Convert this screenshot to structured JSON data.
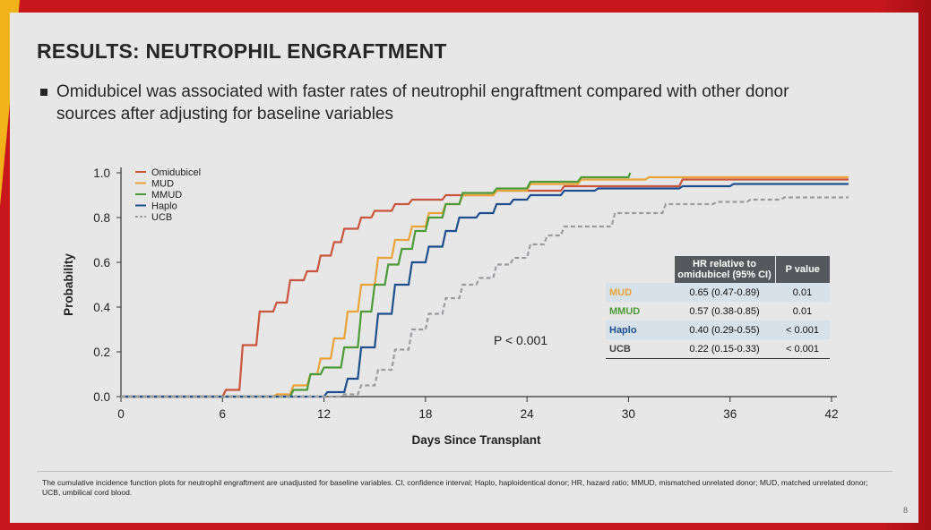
{
  "slide": {
    "title": "RESULTS: NEUTROPHIL ENGRAFTMENT",
    "bullet": "Omidubicel was associated with faster rates of neutrophil engraftment compared with other donor sources after adjusting for baseline variables",
    "footnote": "The cumulative incidence function plots for neutrophil engraftment are unadjusted for baseline variables. CI, confidence interval; Haplo, haploidentical donor; HR, hazard ratio; MMUD, mismatched unrelated donor; MUD, matched unrelated donor; UCB, umbilical cord blood.",
    "page_number": "8"
  },
  "table": {
    "headers": [
      "",
      "HR relative to omidubicel (95% CI)",
      "P value"
    ],
    "rows": [
      {
        "group": "MUD",
        "hr": "0.65 (0.47-0.89)",
        "p": "0.01",
        "color": "#e8a33a"
      },
      {
        "group": "MMUD",
        "hr": "0.57 (0.38-0.85)",
        "p": "0.01",
        "color": "#4e9a3a"
      },
      {
        "group": "Haplo",
        "hr": "0.40 (0.29-0.55)",
        "p": "< 0.001",
        "color": "#1f4e8c"
      },
      {
        "group": "UCB",
        "hr": "0.22 (0.15-0.33)",
        "p": "< 0.001",
        "color": "#444444"
      }
    ]
  },
  "chart_data": {
    "type": "line",
    "step": true,
    "xlabel": "Days Since Transplant",
    "ylabel": "Probability",
    "xlim": [
      0,
      43
    ],
    "ylim": [
      0,
      1.0
    ],
    "xticks": [
      0,
      6,
      12,
      18,
      24,
      30,
      36,
      42
    ],
    "yticks": [
      "0.0",
      "0.2",
      "0.4",
      "0.6",
      "0.8",
      "1.0"
    ],
    "legend_position": "top-left",
    "annotation": "P < 0.001",
    "series": [
      {
        "name": "Omidubicel",
        "color": "#c8553d",
        "dash": false,
        "points": [
          [
            0,
            0
          ],
          [
            6,
            0
          ],
          [
            6.2,
            0.03
          ],
          [
            7,
            0.03
          ],
          [
            7.2,
            0.23
          ],
          [
            8,
            0.23
          ],
          [
            8.2,
            0.38
          ],
          [
            9,
            0.38
          ],
          [
            9.2,
            0.42
          ],
          [
            9.8,
            0.42
          ],
          [
            10,
            0.52
          ],
          [
            10.8,
            0.52
          ],
          [
            11,
            0.56
          ],
          [
            11.6,
            0.56
          ],
          [
            11.8,
            0.63
          ],
          [
            12.4,
            0.63
          ],
          [
            12.6,
            0.69
          ],
          [
            13,
            0.69
          ],
          [
            13.2,
            0.75
          ],
          [
            14,
            0.75
          ],
          [
            14.2,
            0.8
          ],
          [
            14.8,
            0.8
          ],
          [
            15,
            0.83
          ],
          [
            16,
            0.83
          ],
          [
            16.2,
            0.86
          ],
          [
            17,
            0.86
          ],
          [
            17.2,
            0.88
          ],
          [
            19,
            0.88
          ],
          [
            19.2,
            0.9
          ],
          [
            22,
            0.9
          ],
          [
            22.2,
            0.92
          ],
          [
            26,
            0.92
          ],
          [
            26.2,
            0.94
          ],
          [
            33,
            0.94
          ],
          [
            33.2,
            0.97
          ],
          [
            43,
            0.97
          ]
        ]
      },
      {
        "name": "MUD",
        "color": "#e8a33a",
        "dash": false,
        "points": [
          [
            0,
            0
          ],
          [
            9,
            0
          ],
          [
            9.2,
            0.01
          ],
          [
            10,
            0.01
          ],
          [
            10.2,
            0.05
          ],
          [
            11,
            0.05
          ],
          [
            11.2,
            0.1
          ],
          [
            11.6,
            0.1
          ],
          [
            11.8,
            0.17
          ],
          [
            12.4,
            0.17
          ],
          [
            12.6,
            0.26
          ],
          [
            13.2,
            0.26
          ],
          [
            13.4,
            0.38
          ],
          [
            14,
            0.38
          ],
          [
            14.2,
            0.5
          ],
          [
            15,
            0.5
          ],
          [
            15.2,
            0.62
          ],
          [
            16,
            0.62
          ],
          [
            16.2,
            0.7
          ],
          [
            17,
            0.7
          ],
          [
            17.2,
            0.76
          ],
          [
            18,
            0.76
          ],
          [
            18.2,
            0.82
          ],
          [
            19,
            0.82
          ],
          [
            19.2,
            0.86
          ],
          [
            20,
            0.86
          ],
          [
            20.2,
            0.9
          ],
          [
            22,
            0.9
          ],
          [
            22.2,
            0.92
          ],
          [
            24,
            0.92
          ],
          [
            24.2,
            0.95
          ],
          [
            27,
            0.95
          ],
          [
            27.2,
            0.97
          ],
          [
            31,
            0.97
          ],
          [
            31.2,
            0.98
          ],
          [
            43,
            0.98
          ]
        ]
      },
      {
        "name": "MMUD",
        "color": "#4e9a3a",
        "dash": false,
        "points": [
          [
            0,
            0
          ],
          [
            10,
            0
          ],
          [
            10.2,
            0.03
          ],
          [
            11,
            0.03
          ],
          [
            11.2,
            0.1
          ],
          [
            11.8,
            0.1
          ],
          [
            12,
            0.13
          ],
          [
            13,
            0.13
          ],
          [
            13.2,
            0.22
          ],
          [
            14,
            0.22
          ],
          [
            14.2,
            0.38
          ],
          [
            14.8,
            0.38
          ],
          [
            15,
            0.5
          ],
          [
            15.6,
            0.5
          ],
          [
            15.8,
            0.59
          ],
          [
            16.4,
            0.59
          ],
          [
            16.6,
            0.66
          ],
          [
            17.2,
            0.66
          ],
          [
            17.4,
            0.74
          ],
          [
            18,
            0.74
          ],
          [
            18.2,
            0.8
          ],
          [
            19,
            0.8
          ],
          [
            19.2,
            0.86
          ],
          [
            20,
            0.86
          ],
          [
            20.2,
            0.91
          ],
          [
            22,
            0.91
          ],
          [
            22.2,
            0.93
          ],
          [
            24,
            0.93
          ],
          [
            24.2,
            0.96
          ],
          [
            27,
            0.96
          ],
          [
            27.2,
            0.98
          ],
          [
            30,
            0.98
          ],
          [
            30.1,
            1.0
          ]
        ]
      },
      {
        "name": "Haplo",
        "color": "#1f4e8c",
        "dash": false,
        "points": [
          [
            0,
            0
          ],
          [
            12,
            0
          ],
          [
            12.2,
            0.02
          ],
          [
            13.2,
            0.02
          ],
          [
            13.4,
            0.08
          ],
          [
            14,
            0.08
          ],
          [
            14.2,
            0.22
          ],
          [
            15,
            0.22
          ],
          [
            15.2,
            0.37
          ],
          [
            16,
            0.37
          ],
          [
            16.2,
            0.5
          ],
          [
            17,
            0.5
          ],
          [
            17.2,
            0.6
          ],
          [
            18,
            0.6
          ],
          [
            18.2,
            0.67
          ],
          [
            19,
            0.67
          ],
          [
            19.2,
            0.74
          ],
          [
            19.8,
            0.74
          ],
          [
            20,
            0.8
          ],
          [
            21,
            0.8
          ],
          [
            21.2,
            0.82
          ],
          [
            22,
            0.82
          ],
          [
            22.2,
            0.86
          ],
          [
            23,
            0.86
          ],
          [
            23.2,
            0.88
          ],
          [
            24,
            0.88
          ],
          [
            24.2,
            0.9
          ],
          [
            26,
            0.9
          ],
          [
            26.2,
            0.92
          ],
          [
            28,
            0.92
          ],
          [
            28.2,
            0.93
          ],
          [
            33,
            0.93
          ],
          [
            33.2,
            0.94
          ],
          [
            36,
            0.94
          ],
          [
            36.2,
            0.95
          ],
          [
            43,
            0.95
          ]
        ]
      },
      {
        "name": "UCB",
        "color": "#9a9ca0",
        "dash": true,
        "points": [
          [
            0,
            0
          ],
          [
            13,
            0
          ],
          [
            13.2,
            0.01
          ],
          [
            14,
            0.01
          ],
          [
            14.2,
            0.05
          ],
          [
            15,
            0.05
          ],
          [
            15.2,
            0.12
          ],
          [
            16,
            0.12
          ],
          [
            16.2,
            0.21
          ],
          [
            17,
            0.21
          ],
          [
            17.2,
            0.3
          ],
          [
            18,
            0.3
          ],
          [
            18.2,
            0.37
          ],
          [
            19,
            0.37
          ],
          [
            19.2,
            0.44
          ],
          [
            20,
            0.44
          ],
          [
            20.2,
            0.5
          ],
          [
            21,
            0.5
          ],
          [
            21.2,
            0.53
          ],
          [
            22,
            0.53
          ],
          [
            22.2,
            0.59
          ],
          [
            23,
            0.59
          ],
          [
            23.2,
            0.62
          ],
          [
            24,
            0.62
          ],
          [
            24.2,
            0.68
          ],
          [
            25,
            0.68
          ],
          [
            25.2,
            0.72
          ],
          [
            26,
            0.72
          ],
          [
            26.2,
            0.76
          ],
          [
            29,
            0.76
          ],
          [
            29.2,
            0.82
          ],
          [
            32,
            0.82
          ],
          [
            32.2,
            0.86
          ],
          [
            35,
            0.86
          ],
          [
            35.2,
            0.87
          ],
          [
            37,
            0.87
          ],
          [
            37.2,
            0.88
          ],
          [
            39,
            0.88
          ],
          [
            39.2,
            0.89
          ],
          [
            43,
            0.89
          ]
        ]
      }
    ]
  }
}
